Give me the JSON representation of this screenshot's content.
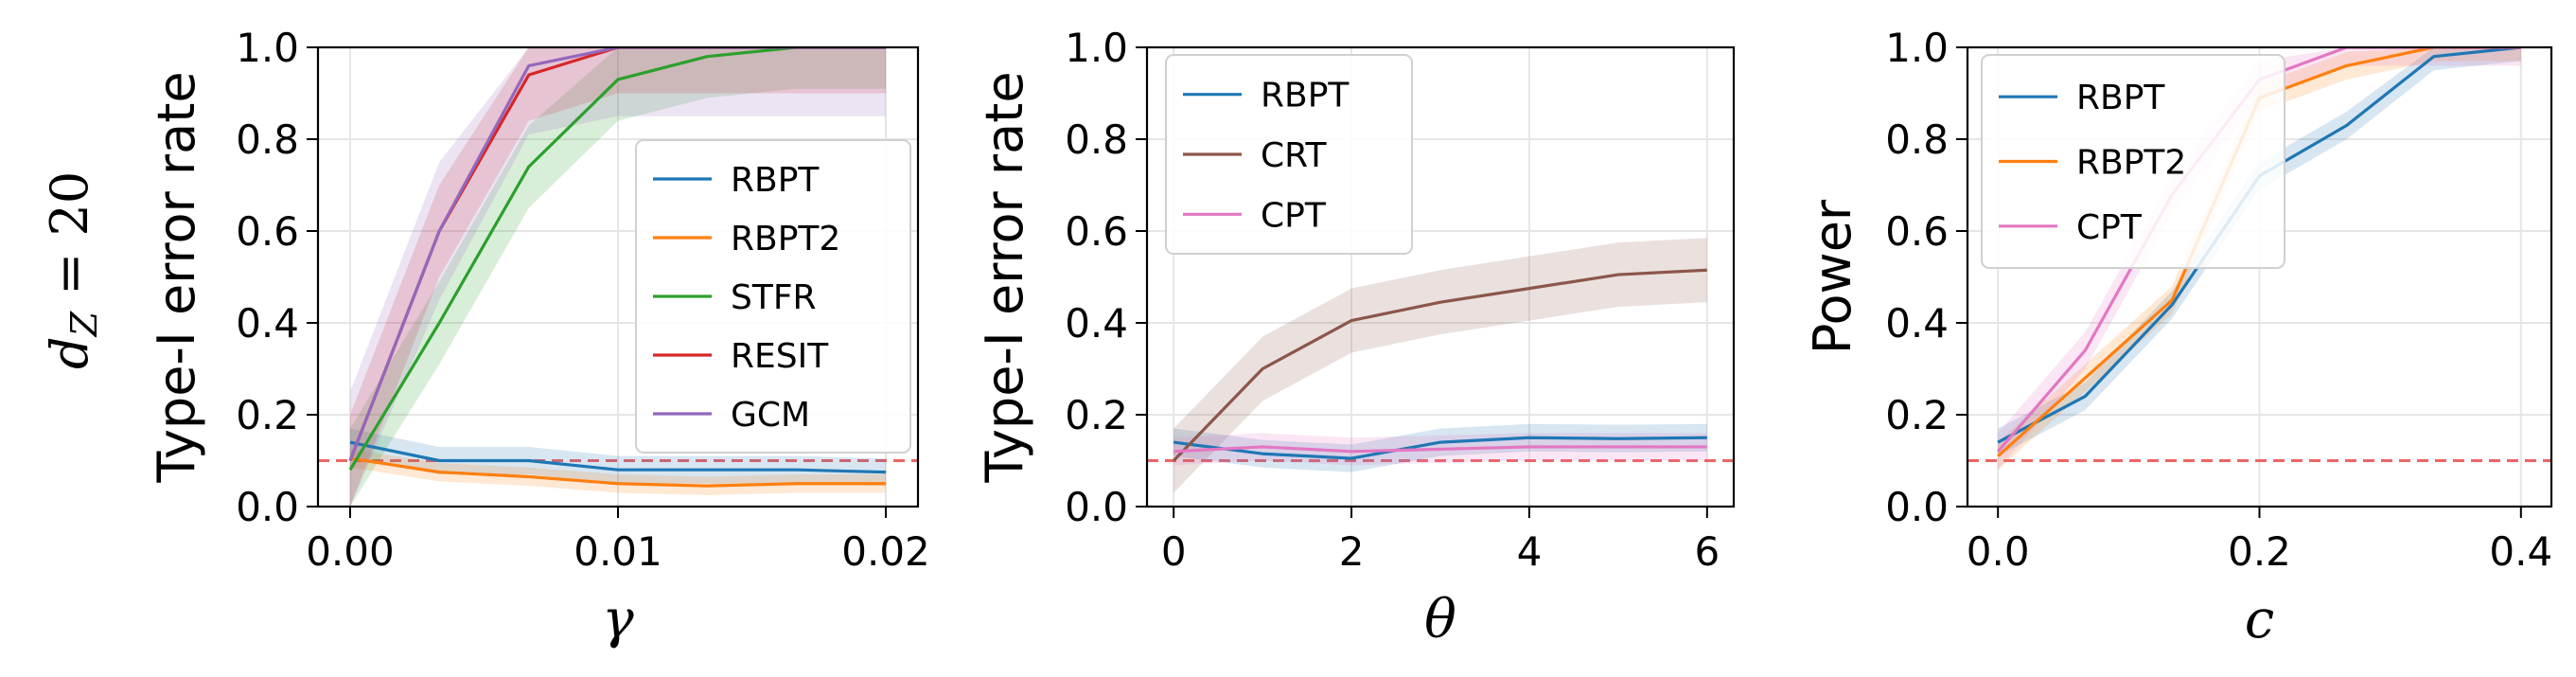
{
  "figure": {
    "row_label": "d",
    "row_label_sub": "Z",
    "row_label_rest": " = 20"
  },
  "chart_data": [
    {
      "type": "line",
      "xlabel": "γ",
      "ylabel": "Type-I error rate",
      "xlim": [
        -0.0012,
        0.0212
      ],
      "ylim": [
        0,
        1
      ],
      "xticks": [
        "0.00",
        "0.01",
        "0.02"
      ],
      "yticks": [
        "0.0",
        "0.2",
        "0.4",
        "0.6",
        "0.8",
        "1.0"
      ],
      "grid": true,
      "legend_position": "center-right",
      "reference_line": {
        "y": 0.1,
        "color": "#e94b4b",
        "style": "dashed"
      },
      "x": [
        0,
        0.00333,
        0.00667,
        0.01,
        0.01333,
        0.01667,
        0.02
      ],
      "series": [
        {
          "name": "RBPT",
          "color": "#1f77b4",
          "values": [
            0.14,
            0.1,
            0.1,
            0.08,
            0.08,
            0.08,
            0.075
          ],
          "band": 0.03
        },
        {
          "name": "RBPT2",
          "color": "#ff7f0e",
          "values": [
            0.105,
            0.075,
            0.065,
            0.05,
            0.045,
            0.05,
            0.05
          ],
          "band": 0.02
        },
        {
          "name": "STFR",
          "color": "#2ca02c",
          "values": [
            0.08,
            0.4,
            0.74,
            0.93,
            0.98,
            1.0,
            1.0
          ],
          "band": 0.09
        },
        {
          "name": "RESIT",
          "color": "#d62728",
          "values": [
            0.1,
            0.6,
            0.94,
            1.0,
            1.0,
            1.0,
            1.0
          ],
          "band": 0.1
        },
        {
          "name": "GCM",
          "color": "#9467bd",
          "values": [
            0.1,
            0.6,
            0.96,
            1.0,
            1.0,
            1.0,
            1.0
          ],
          "band": 0.15
        }
      ]
    },
    {
      "type": "line",
      "xlabel": "θ",
      "ylabel": "Type-I error rate",
      "xlim": [
        -0.3,
        6.3
      ],
      "ylim": [
        0,
        1
      ],
      "xticks": [
        "0",
        "2",
        "4",
        "6"
      ],
      "yticks": [
        "0.0",
        "0.2",
        "0.4",
        "0.6",
        "0.8",
        "1.0"
      ],
      "grid": true,
      "legend_position": "top-left",
      "reference_line": {
        "y": 0.1,
        "color": "#e94b4b",
        "style": "dashed"
      },
      "x": [
        0,
        1,
        2,
        3,
        4,
        5,
        6
      ],
      "series": [
        {
          "name": "RBPT",
          "color": "#1f77b4",
          "values": [
            0.14,
            0.115,
            0.105,
            0.14,
            0.15,
            0.148,
            0.15
          ],
          "band": 0.03
        },
        {
          "name": "CRT",
          "color": "#8c564b",
          "values": [
            0.1,
            0.3,
            0.405,
            0.445,
            0.475,
            0.505,
            0.515
          ],
          "band": 0.07
        },
        {
          "name": "CPT",
          "color": "#e377c2",
          "values": [
            0.12,
            0.13,
            0.12,
            0.125,
            0.13,
            0.13,
            0.13
          ],
          "band": 0.03
        }
      ]
    },
    {
      "type": "line",
      "xlabel": "c",
      "ylabel": "Power",
      "xlim": [
        -0.0233,
        0.4233
      ],
      "ylim": [
        0,
        1
      ],
      "xticks": [
        "0.0",
        "0.2",
        "0.4"
      ],
      "yticks": [
        "0.0",
        "0.2",
        "0.4",
        "0.6",
        "0.8",
        "1.0"
      ],
      "grid": true,
      "legend_position": "top-left",
      "reference_line": {
        "y": 0.1,
        "color": "#e94b4b",
        "style": "dashed"
      },
      "x": [
        0,
        0.0667,
        0.1333,
        0.2,
        0.2667,
        0.3333,
        0.4
      ],
      "series": [
        {
          "name": "RBPT",
          "color": "#1f77b4",
          "values": [
            0.14,
            0.24,
            0.44,
            0.72,
            0.83,
            0.98,
            1.0
          ],
          "band": 0.03
        },
        {
          "name": "RBPT2",
          "color": "#ff7f0e",
          "values": [
            0.11,
            0.28,
            0.45,
            0.89,
            0.96,
            1.0,
            1.0
          ],
          "band": 0.03
        },
        {
          "name": "CPT",
          "color": "#e377c2",
          "values": [
            0.12,
            0.34,
            0.68,
            0.93,
            1.0,
            1.0,
            1.0
          ],
          "band": 0.04
        }
      ]
    }
  ]
}
